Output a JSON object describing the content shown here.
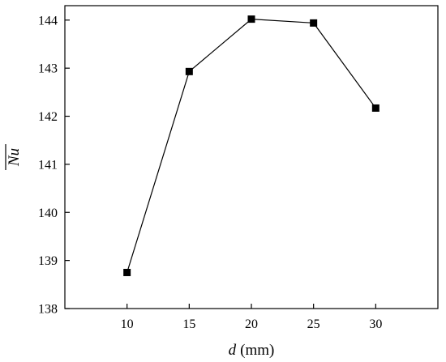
{
  "chart_data": {
    "type": "line",
    "title": "",
    "xlabel": {
      "symbol": "d",
      "unit": "(mm)"
    },
    "ylabel": {
      "symbol": "Nu",
      "overline": true
    },
    "x": [
      10,
      15,
      20,
      25,
      30
    ],
    "series": [
      {
        "values": [
          138.75,
          142.93,
          144.02,
          143.94,
          142.17
        ],
        "marker": "square",
        "color": "#000000"
      }
    ],
    "xlim": [
      5,
      35
    ],
    "ylim": [
      138,
      144.3
    ],
    "xticks": [
      "10",
      "15",
      "20",
      "25",
      "30"
    ],
    "yticks": [
      "138",
      "139",
      "140",
      "141",
      "142",
      "143",
      "144"
    ],
    "grid": false,
    "legend": false
  }
}
